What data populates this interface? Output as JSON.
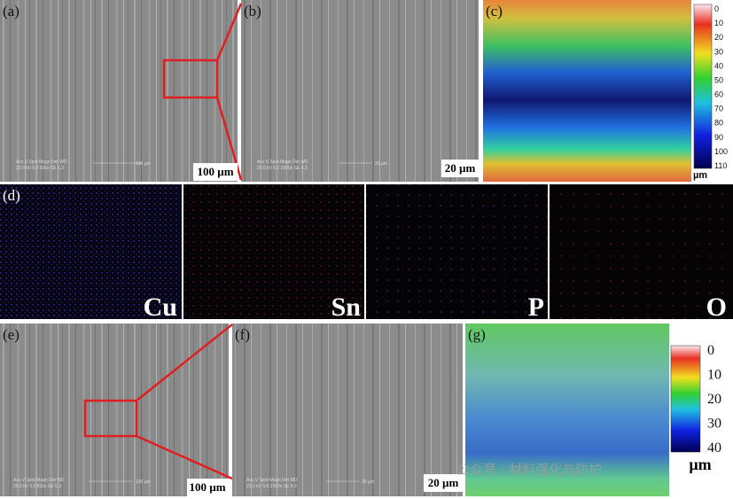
{
  "panels": {
    "a": {
      "label": "(a)",
      "scale": "100 µm",
      "info": [
        "Acc.V  Spot Magn   Det  WD",
        "20.0 kV 5.0  500x     SE   6.3"
      ],
      "bar": "100 µm"
    },
    "b": {
      "label": "(b)",
      "scale": "20 µm",
      "info": [
        "Acc.V  Spot Magn   Det  WD",
        "20.0 kV 5.0  2000x   SE   6.3"
      ],
      "bar": "20 µm"
    },
    "c": {
      "label": "(c)",
      "colorbar": {
        "ticks": [
          0,
          10,
          20,
          30,
          40,
          50,
          60,
          70,
          80,
          90,
          100,
          110
        ],
        "unit": "µm"
      }
    },
    "d": {
      "label": "(d)",
      "elements": [
        "Cu",
        "Sn",
        "P",
        "O"
      ]
    },
    "e": {
      "label": "(e)",
      "scale": "100 µm",
      "info": [
        "Acc.V  Spot Magn   Det  WD",
        "20.0 kV 5.0  500x     SE   6.3"
      ],
      "bar": "100 µm"
    },
    "f": {
      "label": "(f)",
      "scale": "20 µm",
      "info": [
        "Acc.V  Spot Magn   Det  WD",
        "20.0 kV 5.0  2000x   SE   6.3"
      ],
      "bar": "20 µm"
    },
    "g": {
      "label": "(g)",
      "colorbar": {
        "ticks": [
          0,
          10,
          20,
          30,
          40
        ],
        "unit": "µm"
      }
    }
  },
  "watermark": "公众号 · 材料强化与防护"
}
